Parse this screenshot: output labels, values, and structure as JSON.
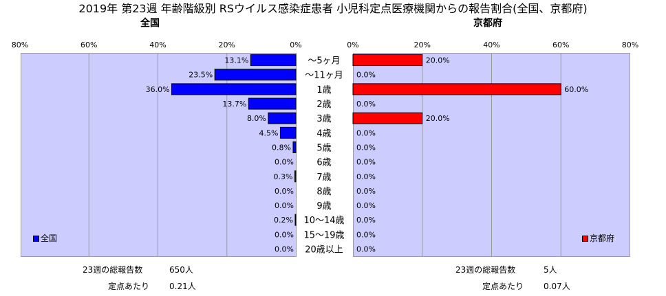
{
  "title": "2019年 第23週 年齢階級別 RSウイルス感染症患者 小児科定点医療機関からの報告割合(全国、京都府)",
  "colors": {
    "plot_bg": "#ccccff",
    "national": "#0000ff",
    "kyoto": "#ff0000",
    "grid": "#9a9a9a"
  },
  "chart_data": {
    "type": "bar",
    "orientation": "horizontal",
    "categories": [
      "〜5ヶ月",
      "〜11ヶ月",
      "1歳",
      "2歳",
      "3歳",
      "4歳",
      "5歳",
      "6歳",
      "7歳",
      "8歳",
      "9歳",
      "10〜14歳",
      "15〜19歳",
      "20歳以上"
    ],
    "xticks": [
      "80%",
      "60%",
      "40%",
      "20%",
      "0%"
    ],
    "xticks_right": [
      "0%",
      "20%",
      "40%",
      "60%",
      "80%"
    ],
    "xlim": [
      0,
      80
    ],
    "series": [
      {
        "name": "全国",
        "title": "全国",
        "color": "#0000ff",
        "values": [
          13.1,
          23.5,
          36.0,
          13.7,
          8.0,
          4.5,
          0.8,
          0.0,
          0.3,
          0.0,
          0.0,
          0.2,
          0.0,
          0.0
        ],
        "labels": [
          "13.1%",
          "23.5%",
          "36.0%",
          "13.7%",
          "8.0%",
          "4.5%",
          "0.8%",
          "0.0%",
          "0.3%",
          "0.0%",
          "0.0%",
          "0.2%",
          "0.0%",
          "0.0%"
        ],
        "legend_label": "全国",
        "legend_position": "bottom-left"
      },
      {
        "name": "京都府",
        "title": "京都府",
        "color": "#ff0000",
        "values": [
          20.0,
          0.0,
          60.0,
          0.0,
          20.0,
          0.0,
          0.0,
          0.0,
          0.0,
          0.0,
          0.0,
          0.0,
          0.0,
          0.0
        ],
        "labels": [
          "20.0%",
          "0.0%",
          "60.0%",
          "0.0%",
          "20.0%",
          "0.0%",
          "0.0%",
          "0.0%",
          "0.0%",
          "0.0%",
          "0.0%",
          "0.0%",
          "0.0%",
          "0.0%"
        ],
        "legend_label": "京都府",
        "legend_position": "bottom-right"
      }
    ],
    "grid": true
  },
  "footer": {
    "national": {
      "total_label": "23週の総報告数",
      "total_value": "650人",
      "per_site_label": "定点あたり",
      "per_site_value": "0.21人"
    },
    "kyoto": {
      "total_label": "23週の総報告数",
      "total_value": "5人",
      "per_site_label": "定点あたり",
      "per_site_value": "0.07人"
    }
  }
}
